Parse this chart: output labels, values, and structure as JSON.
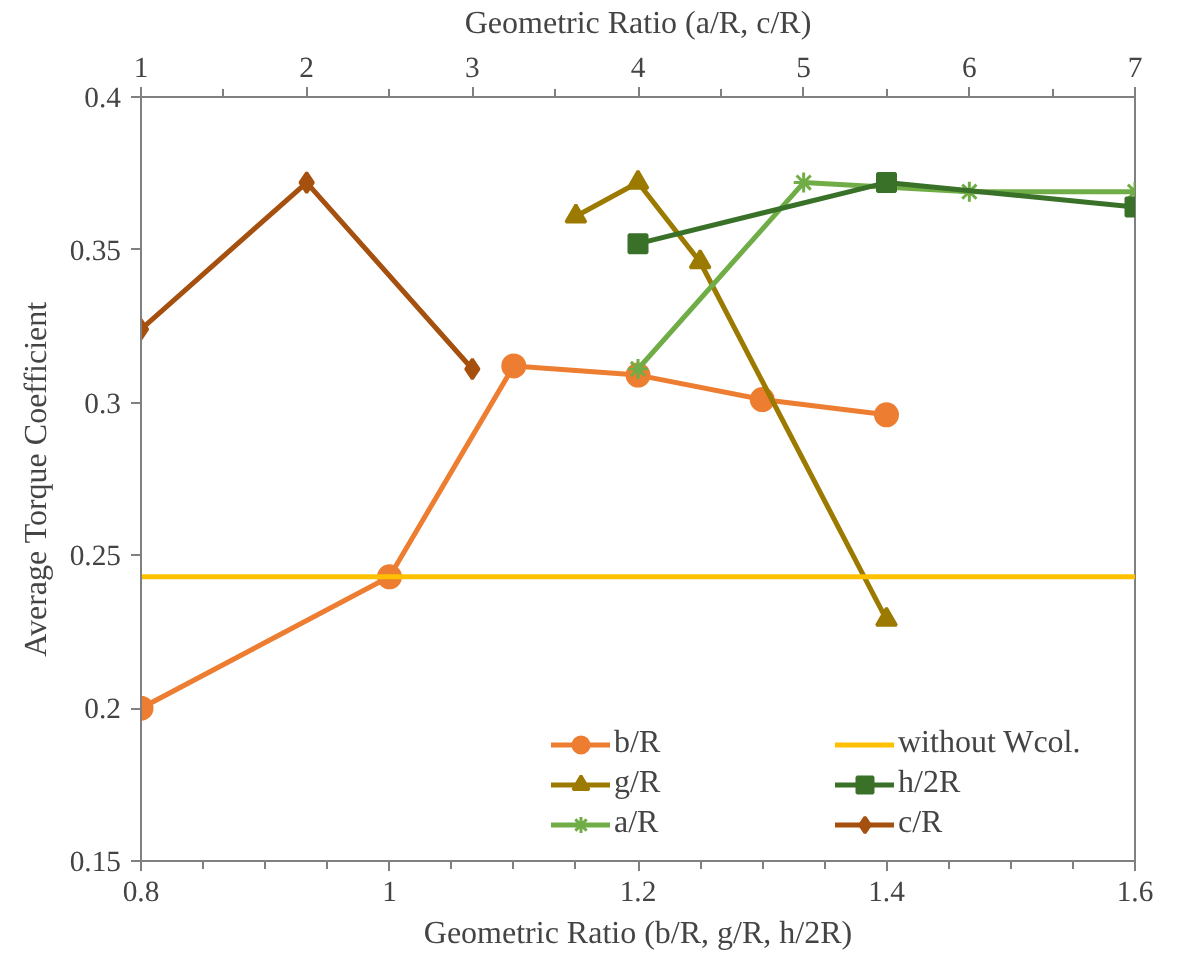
{
  "chart_data": {
    "type": "line",
    "xlabel": "Geometric Ratio (b/R, g/R, h/2R)",
    "x2label": "Geometric Ratio (a/R, c/R)",
    "ylabel": "Average Torque Coefficient",
    "xlim": [
      0.8,
      1.6
    ],
    "xticks": [
      0.8,
      1,
      1.2,
      1.4,
      1.6
    ],
    "x2lim": [
      1,
      7
    ],
    "x2ticks": [
      1,
      2,
      3,
      4,
      5,
      6,
      7
    ],
    "ylim": [
      0.15,
      0.4
    ],
    "yticks": [
      0.15,
      0.2,
      0.25,
      0.3,
      0.35,
      0.4
    ],
    "grid": false,
    "legend": "bottom",
    "series": [
      {
        "name": "b/R",
        "color": "#ed7d31",
        "marker": "circle",
        "x": [
          0.8,
          1.0,
          1.1,
          1.2,
          1.3,
          1.4
        ],
        "values": [
          0.2,
          0.243,
          0.312,
          0.309,
          0.301,
          0.296
        ]
      },
      {
        "name": "g/R",
        "color": "#9c7a00",
        "marker": "triangle",
        "x": [
          1.15,
          1.2,
          1.25,
          1.4
        ],
        "values": [
          0.361,
          0.372,
          0.346,
          0.229
        ]
      },
      {
        "name": "a/R",
        "color": "#70ad47",
        "marker": "cross",
        "axis": "x2",
        "x": [
          4,
          5,
          6,
          7
        ],
        "values": [
          0.311,
          0.372,
          0.369,
          0.369
        ]
      },
      {
        "name": "h/2R",
        "color": "#3a7128",
        "marker": "square",
        "x": [
          1.2,
          1.4,
          1.6
        ],
        "values": [
          0.352,
          0.372,
          0.364
        ]
      },
      {
        "name": "c/R",
        "color": "#a5500f",
        "marker": "diamond",
        "axis": "x2",
        "x": [
          1,
          2,
          3
        ],
        "values": [
          0.324,
          0.372,
          0.311
        ]
      }
    ],
    "ref_lines": [
      {
        "axis": "y",
        "value": 0.243,
        "label": "without Wcol.",
        "color": "#ffc000"
      }
    ]
  }
}
